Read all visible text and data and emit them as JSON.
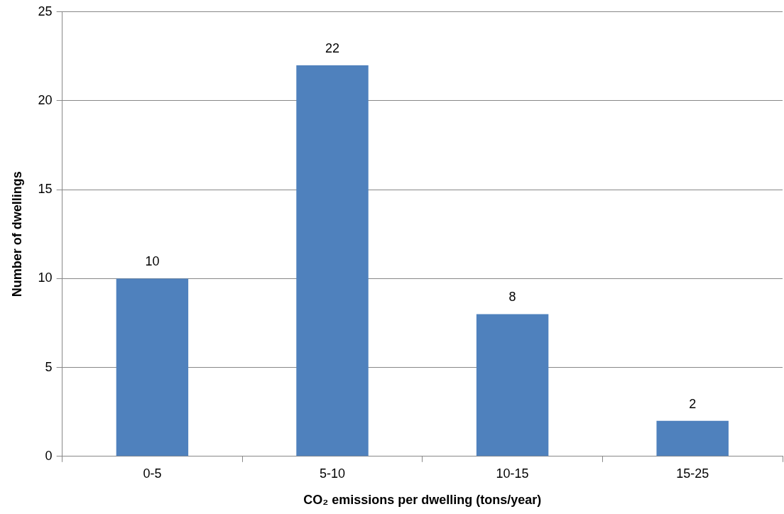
{
  "chart_data": {
    "type": "bar",
    "xlabel": "CO₂ emissions per dwelling (tons/year)",
    "ylabel": "Number of dwellings",
    "categories": [
      "0-5",
      "5-10",
      "10-15",
      "15-25"
    ],
    "values": [
      10,
      22,
      8,
      2
    ],
    "color": "#4f81bd",
    "ylim": [
      0,
      25
    ],
    "yticks": [
      0,
      5,
      10,
      15,
      20,
      25
    ],
    "grid": "y",
    "data_labels": true
  }
}
